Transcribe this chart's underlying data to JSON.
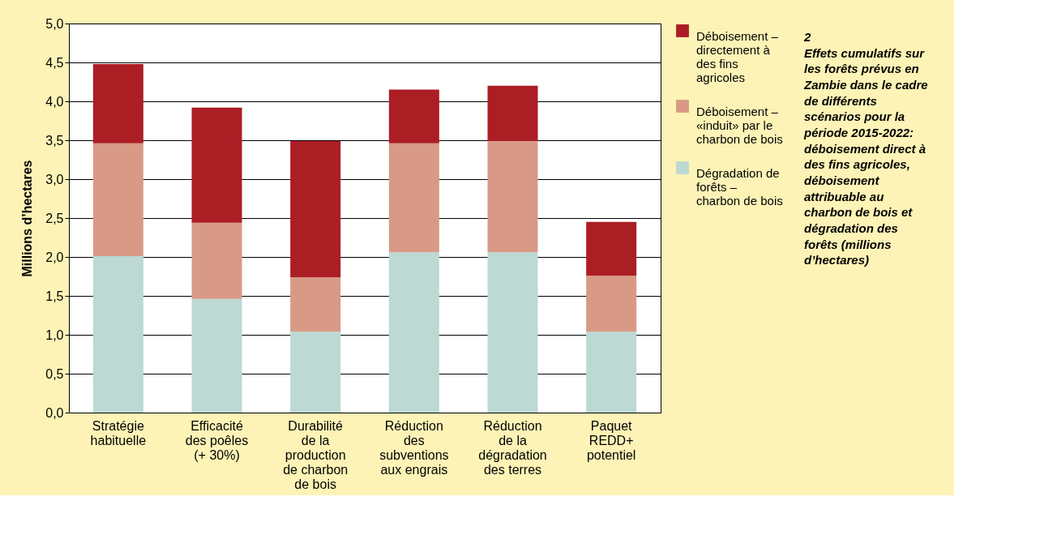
{
  "chart_data": {
    "type": "bar",
    "stacked": true,
    "title": "2",
    "subtitle": "Effets cumulatifs sur les forêts prévus en Zambie dans le cadre de différents scénarios pour la période 2015-2022: déboisement direct à des fins agricoles, déboisement attribuable au charbon de bois et dégradation des forêts (millions d’hectares)",
    "ylabel": "Millions d’hectares",
    "categories": [
      "Stratégie habituelle",
      "Efficacité des poêles (+ 30%)",
      "Durabilité de la production de charbon de bois",
      "Réduction des subventions aux engrais",
      "Réduction de la dégradation des terres",
      "Paquet REDD+ potentiel"
    ],
    "series": [
      {
        "name": "Dégradation de forêts – charbon de bois",
        "color": "#bcd9d3",
        "values": [
          2.01,
          1.46,
          1.04,
          2.06,
          2.06,
          1.04
        ]
      },
      {
        "name": "Déboisement – «induit» par le charbon de bois",
        "color": "#d89a87",
        "values": [
          1.45,
          0.98,
          0.7,
          1.4,
          1.43,
          0.72
        ]
      },
      {
        "name": "Déboisement – directement à des fins agricoles",
        "color": "#ab1e24",
        "values": [
          1.02,
          1.48,
          1.75,
          0.69,
          0.71,
          0.69
        ]
      }
    ],
    "ylim": [
      0,
      5
    ],
    "yticks": [
      {
        "value": 0,
        "label": "0,0"
      },
      {
        "value": 0.5,
        "label": "0,5"
      },
      {
        "value": 1,
        "label": "1,0"
      },
      {
        "value": 1.5,
        "label": "1,5"
      },
      {
        "value": 2,
        "label": "2,0"
      },
      {
        "value": 2.5,
        "label": "2,5"
      },
      {
        "value": 3,
        "label": "3,0"
      },
      {
        "value": 3.5,
        "label": "3,5"
      },
      {
        "value": 4,
        "label": "4,0"
      },
      {
        "value": 4.5,
        "label": "4,5"
      },
      {
        "value": 5,
        "label": "5,0"
      }
    ],
    "grid": "y",
    "legend": "right"
  }
}
